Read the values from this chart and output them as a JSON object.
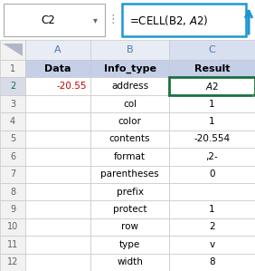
{
  "formula_bar_cell": "C2",
  "formula_bar_formula": "=CELL(B2, $A$2)",
  "col_headers": [
    "A",
    "B",
    "C"
  ],
  "header_row": [
    "Data",
    "Info_type",
    "Result"
  ],
  "rows": [
    [
      "-20.55",
      "address",
      "$A$2"
    ],
    [
      "",
      "col",
      "1"
    ],
    [
      "",
      "color",
      "1"
    ],
    [
      "",
      "contents",
      "-20.554"
    ],
    [
      "",
      "format",
      ",2-"
    ],
    [
      "",
      "parentheses",
      "0"
    ],
    [
      "",
      "prefix",
      ""
    ],
    [
      "",
      "protect",
      "1"
    ],
    [
      "",
      "row",
      "2"
    ],
    [
      "",
      "type",
      "v"
    ],
    [
      "",
      "width",
      "8"
    ]
  ],
  "row_labels": [
    "1",
    "2",
    "3",
    "4",
    "5",
    "6",
    "7",
    "8",
    "9",
    "10",
    "11",
    "12"
  ],
  "header_bg": "#c5cfe8",
  "col_c_header_bg": "#d8dff0",
  "selected_cell_border": "#1a7040",
  "formula_bar_border": "#1e96d3",
  "cell_bg": "#ffffff",
  "row_num_bg": "#f2f2f2",
  "col_header_bg": "#e8ecf5",
  "grid_color": "#c8c8c8",
  "text_negative": "#cc0000",
  "col_header_text": "#4a78b0",
  "row_num_text": "#606060",
  "arrow_color": "#1e96d3",
  "fig_width": 2.82,
  "fig_height": 2.99,
  "dpi": 100
}
